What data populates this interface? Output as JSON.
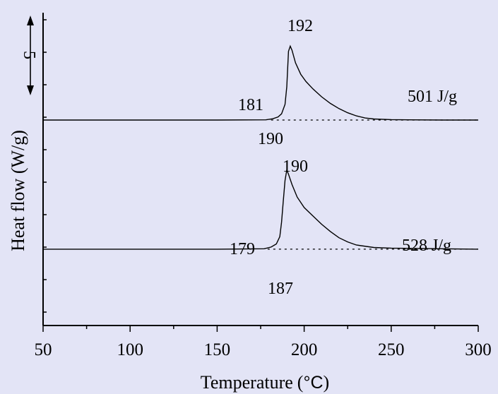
{
  "chart_data": {
    "type": "line",
    "title": "",
    "xlabel": "Temperature",
    "xlabel_unit_open": "(",
    "xlabel_unit": "°C",
    "xlabel_unit_close": ")",
    "ylabel": "Heat flow (W/g)",
    "xlim": [
      50,
      300
    ],
    "x_ticks": [
      50,
      100,
      150,
      200,
      250,
      300
    ],
    "x_tick_labels": [
      "50",
      "100",
      "150",
      "200",
      "250",
      "300"
    ],
    "y_ticks_visible": false,
    "grid": false,
    "legend": "none",
    "scale_bar_label": "5",
    "series": [
      {
        "baseline_level": 0,
        "points": [
          [
            50,
            0
          ],
          [
            100,
            0
          ],
          [
            150,
            0
          ],
          [
            178,
            0.01
          ],
          [
            182,
            0.06
          ],
          [
            185,
            0.15
          ],
          [
            187,
            0.3
          ],
          [
            189,
            0.75
          ],
          [
            190,
            1.6
          ],
          [
            191,
            3.3
          ],
          [
            192,
            3.55
          ],
          [
            193,
            3.35
          ],
          [
            195,
            2.75
          ],
          [
            198,
            2.2
          ],
          [
            201,
            1.85
          ],
          [
            205,
            1.5
          ],
          [
            210,
            1.12
          ],
          [
            215,
            0.8
          ],
          [
            220,
            0.55
          ],
          [
            225,
            0.35
          ],
          [
            230,
            0.2
          ],
          [
            235,
            0.1
          ],
          [
            240,
            0.05
          ],
          [
            250,
            0.02
          ],
          [
            260,
            0.01
          ],
          [
            280,
            0
          ],
          [
            300,
            0
          ]
        ],
        "baseline": [
          [
            181,
            0
          ],
          [
            300,
            0
          ]
        ],
        "annotations": {
          "onset": "181",
          "extrapolated_onset": "190",
          "peak": "192",
          "enthalpy": "501 J/g"
        }
      },
      {
        "baseline_level": -6.2,
        "points": [
          [
            50,
            -6.2
          ],
          [
            100,
            -6.2
          ],
          [
            150,
            -6.2
          ],
          [
            177,
            -6.18
          ],
          [
            181,
            -6.1
          ],
          [
            184,
            -5.95
          ],
          [
            186,
            -5.6
          ],
          [
            187,
            -4.9
          ],
          [
            188,
            -3.9
          ],
          [
            189,
            -2.9
          ],
          [
            190,
            -2.4
          ],
          [
            191,
            -2.6
          ],
          [
            193,
            -3.1
          ],
          [
            196,
            -3.7
          ],
          [
            200,
            -4.2
          ],
          [
            205,
            -4.6
          ],
          [
            210,
            -5.0
          ],
          [
            215,
            -5.35
          ],
          [
            220,
            -5.65
          ],
          [
            225,
            -5.85
          ],
          [
            230,
            -6.0
          ],
          [
            240,
            -6.12
          ],
          [
            250,
            -6.15
          ],
          [
            300,
            -6.2
          ]
        ],
        "baseline": [
          [
            179,
            -6.2
          ],
          [
            300,
            -6.2
          ]
        ],
        "annotations": {
          "onset": "179",
          "extrapolated_onset": "187",
          "peak": "190",
          "enthalpy": "528 J/g"
        }
      }
    ]
  }
}
